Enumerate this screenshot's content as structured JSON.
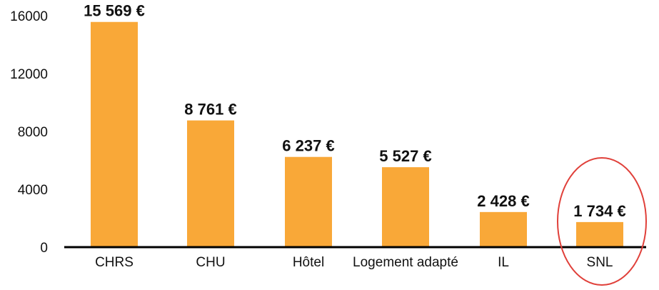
{
  "chart_data": {
    "type": "bar",
    "categories": [
      "CHRS",
      "CHU",
      "Hôtel",
      "Logement adapté",
      "IL",
      "SNL"
    ],
    "values": [
      15569,
      8761,
      6237,
      5527,
      2428,
      1734
    ],
    "value_labels": [
      "15 569 €",
      "8 761 €",
      "6 237 €",
      "5 527 €",
      "2 428 €",
      "1 734 €"
    ],
    "yticks": [
      "0",
      "4000",
      "8000",
      "12000",
      "16000"
    ],
    "ylim": [
      0,
      16000
    ],
    "grid": false,
    "bar_color": "#f9a838",
    "highlight_category": "SNL",
    "highlight_color": "#e0403a"
  }
}
